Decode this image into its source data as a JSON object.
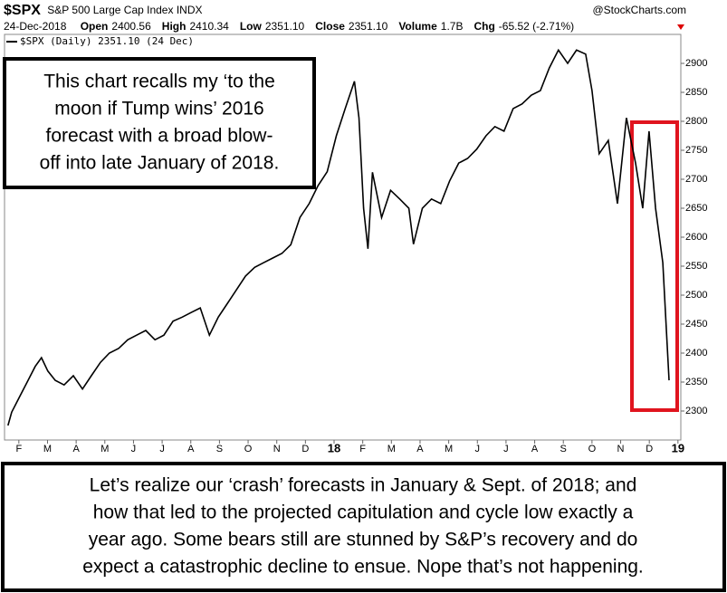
{
  "header": {
    "symbol": "$SPX",
    "name": "S&P 500 Large Cap Index INDX",
    "source": "@StockCharts.com",
    "date": "24-Dec-2018",
    "stats": [
      {
        "label": "Open",
        "value": "2400.56"
      },
      {
        "label": "High",
        "value": "2410.34"
      },
      {
        "label": "Low",
        "value": "2351.10"
      },
      {
        "label": "Close",
        "value": "2351.10"
      },
      {
        "label": "Volume",
        "value": "1.7B"
      },
      {
        "label": "Chg",
        "value": "-65.52 (-2.71%)"
      }
    ]
  },
  "chart_data": {
    "type": "line",
    "annotations": [
      [
        "This chart recalls my ‘to the",
        "moon if Tump wins’ 2016",
        "forecast with a broad blow-",
        "off into late January of 2018."
      ],
      [
        "Let’s realize our ‘crash’ forecasts in January & Sept. of 2018; and",
        "how that led to the projected capitulation and cycle low exactly a",
        "year ago. Some bears still are stunned by S&P’s recovery and do",
        "expect a catastrophic decline to ensue. Nope that’s not happening."
      ]
    ],
    "series": [
      {
        "name": "$SPX (Daily) 2351.10 (24 Dec)",
        "color": "#000000",
        "x": [
          0.62,
          0.75,
          1.0,
          1.32,
          1.57,
          1.79,
          2.01,
          2.27,
          2.58,
          2.9,
          3.22,
          3.53,
          3.85,
          4.16,
          4.48,
          4.8,
          5.11,
          5.43,
          5.75,
          6.06,
          6.38,
          6.7,
          7.01,
          7.33,
          7.65,
          7.96,
          8.28,
          8.59,
          8.91,
          9.23,
          9.54,
          9.86,
          10.18,
          10.49,
          10.81,
          11.13,
          11.44,
          11.76,
          12.08,
          12.39,
          12.71,
          12.87,
          13.03,
          13.18,
          13.34,
          13.66,
          13.97,
          14.29,
          14.61,
          14.77,
          15.08,
          15.4,
          15.72,
          16.03,
          16.35,
          16.66,
          16.98,
          17.3,
          17.61,
          17.93,
          18.25,
          18.56,
          18.88,
          19.2,
          19.51,
          19.83,
          20.15,
          20.46,
          20.78,
          21.0,
          21.25,
          21.57,
          21.89,
          22.2,
          22.52,
          22.77,
          22.99,
          23.22,
          23.47,
          23.69
        ],
        "values": [
          2275,
          2298,
          2322,
          2353,
          2377,
          2392,
          2369,
          2353,
          2345,
          2361,
          2338,
          2361,
          2384,
          2400,
          2408,
          2423,
          2431,
          2439,
          2423,
          2431,
          2455,
          2462,
          2470,
          2478,
          2431,
          2462,
          2486,
          2509,
          2533,
          2548,
          2556,
          2564,
          2572,
          2587,
          2634,
          2658,
          2689,
          2713,
          2775,
          2822,
          2869,
          2806,
          2650,
          2580,
          2712,
          2634,
          2681,
          2666,
          2650,
          2588,
          2650,
          2666,
          2658,
          2697,
          2728,
          2736,
          2752,
          2775,
          2791,
          2783,
          2822,
          2830,
          2845,
          2853,
          2892,
          2923,
          2900,
          2923,
          2916,
          2853,
          2744,
          2767,
          2658,
          2806,
          2728,
          2650,
          2783,
          2650,
          2556,
          2353
        ]
      }
    ],
    "xlim": [
      0.5,
      24.1
    ],
    "xticks": [
      {
        "value": 1,
        "label": "F"
      },
      {
        "value": 2,
        "label": "M"
      },
      {
        "value": 3,
        "label": "A"
      },
      {
        "value": 4,
        "label": "M"
      },
      {
        "value": 5,
        "label": "J"
      },
      {
        "value": 6,
        "label": "J"
      },
      {
        "value": 7,
        "label": "A"
      },
      {
        "value": 8,
        "label": "S"
      },
      {
        "value": 9,
        "label": "O"
      },
      {
        "value": 10,
        "label": "N"
      },
      {
        "value": 11,
        "label": "D"
      },
      {
        "value": 12,
        "label": "18"
      },
      {
        "value": 13,
        "label": "F"
      },
      {
        "value": 14,
        "label": "M"
      },
      {
        "value": 15,
        "label": "A"
      },
      {
        "value": 16,
        "label": "M"
      },
      {
        "value": 17,
        "label": "J"
      },
      {
        "value": 18,
        "label": "J"
      },
      {
        "value": 19,
        "label": "A"
      },
      {
        "value": 20,
        "label": "S"
      },
      {
        "value": 21,
        "label": "O"
      },
      {
        "value": 22,
        "label": "N"
      },
      {
        "value": 23,
        "label": "D"
      },
      {
        "value": 24,
        "label": "19"
      }
    ],
    "ylim": [
      2250,
      2950
    ],
    "yticks": [
      2300,
      2350,
      2400,
      2450,
      2500,
      2550,
      2600,
      2650,
      2700,
      2750,
      2800,
      2850,
      2900
    ],
    "grid": false
  }
}
